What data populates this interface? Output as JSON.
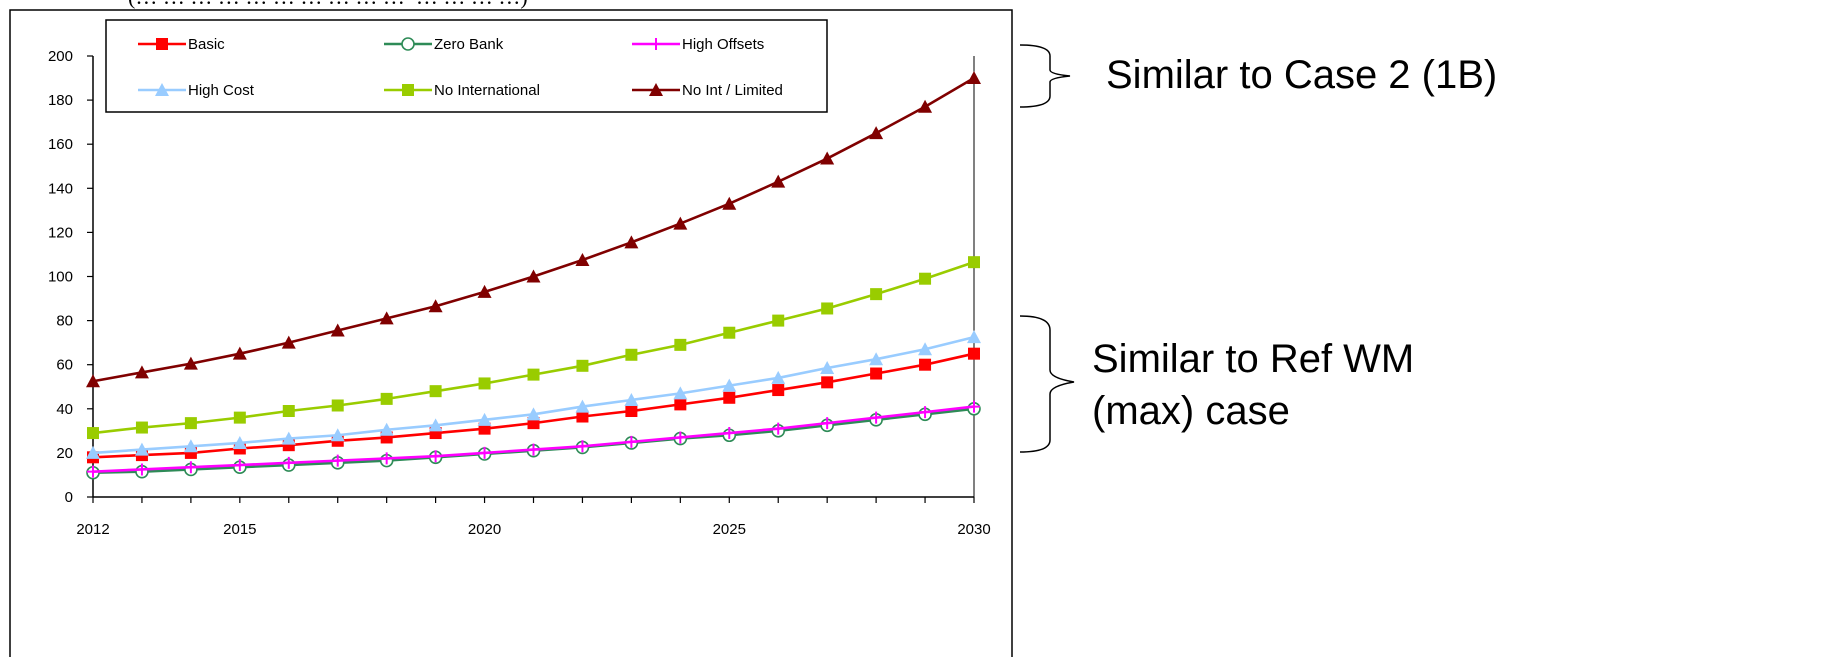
{
  "cropped_header": "(… … ⁠… … … … … … … …  ⁠ … … … …)",
  "annotations": {
    "top": "Similar to Case 2 (1B)",
    "bottom_line1": "Similar to Ref WM",
    "bottom_line2": "(max) case"
  },
  "chart_data": {
    "type": "line",
    "title": "",
    "xlabel": "",
    "ylabel": "",
    "xlim": [
      2012,
      2030
    ],
    "ylim": [
      0,
      200
    ],
    "xticks": [
      2012,
      2015,
      2020,
      2025,
      2030
    ],
    "yticks": [
      0,
      20,
      40,
      60,
      80,
      100,
      120,
      140,
      160,
      180,
      200
    ],
    "grid": false,
    "legend_position": "top",
    "x": [
      2012,
      2013,
      2014,
      2015,
      2016,
      2017,
      2018,
      2019,
      2020,
      2021,
      2022,
      2023,
      2024,
      2025,
      2026,
      2027,
      2028,
      2029,
      2030
    ],
    "series": [
      {
        "name": "Basic",
        "color": "#ff0000",
        "marker": "square-filled",
        "values": [
          18,
          19,
          20,
          22,
          23.5,
          25.5,
          27,
          29,
          31,
          33.5,
          36.5,
          39,
          42,
          45,
          48.5,
          52,
          56,
          60,
          65
        ]
      },
      {
        "name": "Zero Bank",
        "color": "#2e8b57",
        "marker": "circle-open",
        "values": [
          11,
          11.5,
          12.5,
          13.5,
          14.5,
          15.5,
          16.5,
          18,
          19.5,
          21,
          22.5,
          24.5,
          26.5,
          28,
          30,
          32.5,
          35,
          37.5,
          40
        ]
      },
      {
        "name": "High Offsets",
        "color": "#ff00ff",
        "marker": "plus",
        "values": [
          11.5,
          12.5,
          13.5,
          14.5,
          15.5,
          16.5,
          17.5,
          18.5,
          20,
          21.5,
          23,
          25,
          27,
          29,
          31,
          33.5,
          36,
          38.5,
          41
        ]
      },
      {
        "name": "High Cost",
        "color": "#99ccff",
        "marker": "triangle-filled",
        "values": [
          20,
          21.5,
          23,
          24.5,
          26.5,
          28,
          30.5,
          32.5,
          35,
          37.5,
          41,
          44,
          47,
          50.5,
          54,
          58.5,
          62.5,
          67,
          72.5
        ]
      },
      {
        "name": "No International",
        "color": "#99cc00",
        "marker": "square-filled",
        "values": [
          29,
          31.5,
          33.5,
          36,
          39,
          41.5,
          44.5,
          48,
          51.5,
          55.5,
          59.5,
          64.5,
          69,
          74.5,
          80,
          85.5,
          92,
          99,
          106.5
        ]
      },
      {
        "name": "No Int / Limited",
        "color": "#800000",
        "marker": "triangle-filled",
        "values": [
          52.5,
          56.5,
          60.5,
          65,
          70,
          75.5,
          81,
          86.5,
          93,
          100,
          107.5,
          115.5,
          124,
          133,
          143,
          153.5,
          165,
          177,
          190
        ]
      }
    ]
  }
}
